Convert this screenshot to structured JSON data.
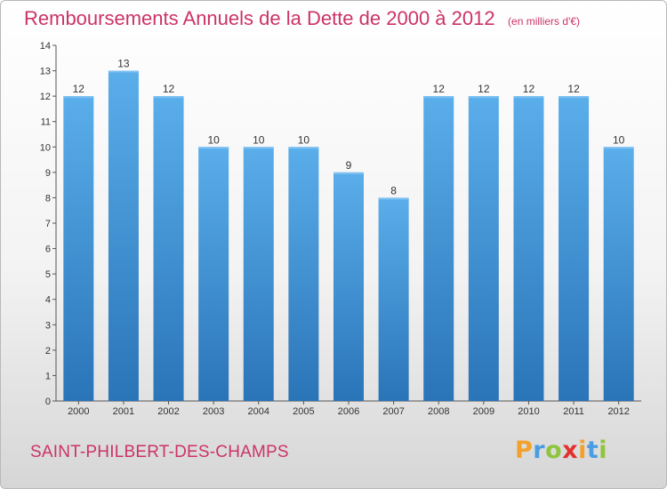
{
  "chart_data": {
    "type": "bar",
    "title": "Remboursements Annuels de la Dette de 2000 à 2012",
    "subtitle": "(en milliers d'€)",
    "xlabel": "",
    "ylabel": "",
    "categories": [
      "2000",
      "2001",
      "2002",
      "2003",
      "2004",
      "2005",
      "2006",
      "2007",
      "2008",
      "2009",
      "2010",
      "2011",
      "2012"
    ],
    "values": [
      12,
      13,
      12,
      10,
      10,
      10,
      9,
      8,
      12,
      12,
      12,
      12,
      10
    ],
    "ylim": [
      0,
      14
    ],
    "yticks": [
      0,
      1,
      2,
      3,
      4,
      5,
      6,
      7,
      8,
      9,
      10,
      11,
      12,
      13,
      14
    ],
    "grid": false,
    "bar_color": "#4a9de0",
    "bar_color_dark": "#2a74b8"
  },
  "commune": "SAINT-PHILBERT-DES-CHAMPS",
  "logo": {
    "letters": [
      "P",
      "r",
      "o",
      "x",
      "i",
      "t",
      "i"
    ],
    "colors": [
      "#f2a12c",
      "#4a9de0",
      "#8fc43b",
      "#e2322c",
      "#f2a12c",
      "#4a9de0",
      "#8fc43b"
    ]
  }
}
